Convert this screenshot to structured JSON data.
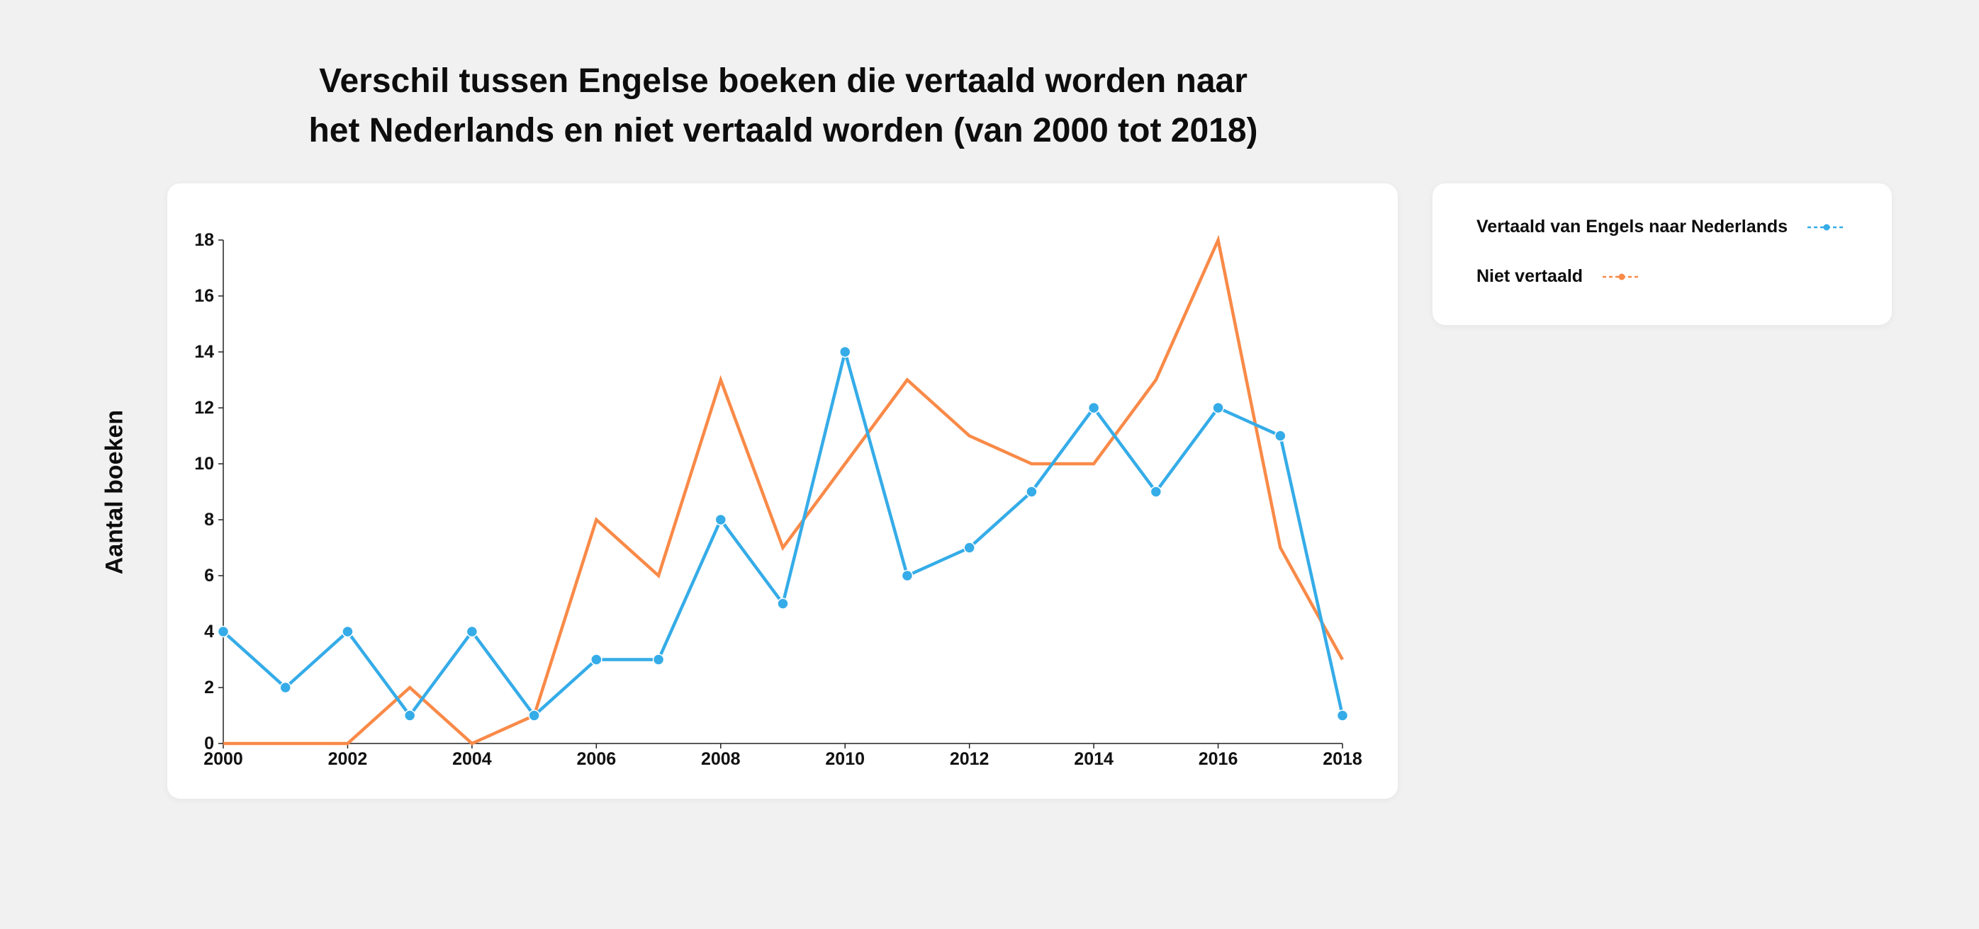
{
  "chart_data": {
    "type": "line",
    "title_lines": [
      "Verschil tussen Engelse boeken die vertaald worden naar",
      "het Nederlands en niet vertaald worden (van 2000 tot 2018)"
    ],
    "xlabel": "",
    "ylabel": "Aantal boeken",
    "x": [
      2000,
      2001,
      2002,
      2003,
      2004,
      2005,
      2006,
      2007,
      2008,
      2009,
      2010,
      2011,
      2012,
      2013,
      2014,
      2015,
      2016,
      2017,
      2018
    ],
    "x_ticks": [
      "2000",
      "2002",
      "2004",
      "2006",
      "2008",
      "2010",
      "2012",
      "2014",
      "2016",
      "2018"
    ],
    "y_ticks": [
      "0",
      "2",
      "4",
      "6",
      "8",
      "10",
      "12",
      "14",
      "16",
      "18"
    ],
    "xlim": [
      2000,
      2018
    ],
    "ylim": [
      0,
      18
    ],
    "grid": false,
    "legend_position": "right",
    "series": [
      {
        "name": "Vertaald van Engels naar Nederlands",
        "color": "#35ace8",
        "markers": true,
        "values": [
          4,
          2,
          4,
          1,
          4,
          1,
          3,
          3,
          8,
          5,
          14,
          6,
          7,
          9,
          12,
          9,
          12,
          11,
          1
        ]
      },
      {
        "name": "Niet vertaald",
        "color": "#f98a48",
        "markers": false,
        "values": [
          0,
          0,
          0,
          2,
          0,
          1,
          8,
          6,
          13,
          7,
          10,
          13,
          11,
          10,
          10,
          13,
          18,
          7,
          3
        ]
      }
    ]
  }
}
